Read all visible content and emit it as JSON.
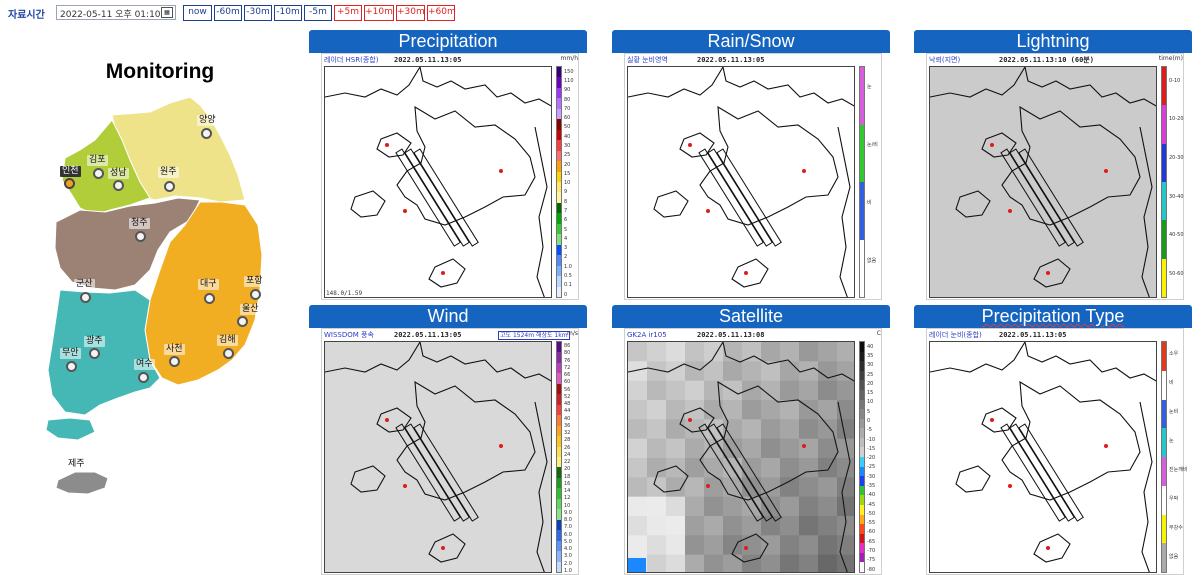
{
  "toolbar": {
    "label": "자료시간",
    "datetime": "2022-05-11 오후 01:10",
    "calendar_icon": "calendar-icon",
    "buttons": [
      {
        "label": "now",
        "style": "blue"
      },
      {
        "label": "-60m",
        "style": "blue"
      },
      {
        "label": "-30m",
        "style": "blue"
      },
      {
        "label": "-10m",
        "style": "blue"
      },
      {
        "label": "-5m",
        "style": "blue"
      },
      {
        "label": "+5m",
        "style": "red"
      },
      {
        "label": "+10m",
        "style": "red"
      },
      {
        "label": "+30m",
        "style": "red"
      },
      {
        "label": "+60m",
        "style": "red"
      }
    ]
  },
  "map": {
    "title": "Monitoring",
    "colors": {
      "northeast": "#efe38a",
      "northwest": "#b2cd3a",
      "central": "#9b8274",
      "southeast": "#f2ae23",
      "southwest": "#45b8b6",
      "jeju": "#8c8c8c",
      "highlight_pin": "#f3a021"
    },
    "cities": {
      "yangyang": "양양",
      "gimpo": "김포",
      "incheon": "인천",
      "seongnam": "성남",
      "wonju": "원주",
      "cheongju": "청주",
      "gunsan": "군산",
      "daegu": "대구",
      "pohang": "포항",
      "ulsan": "울산",
      "gwangju": "광주",
      "muan": "무안",
      "yeosu": "여수",
      "sacheon": "사천",
      "gimhae": "김해",
      "jeju": "제주"
    }
  },
  "panels": [
    {
      "title": "Precipitation",
      "source": "레이더 HSR(종합)",
      "timestamp": "2022.05.11.13:05",
      "unit": "mm/h",
      "footer": "148.0/1.59",
      "plot_background": "#ffffff",
      "scale_labels": [
        "150",
        "110",
        "90",
        "80",
        "70",
        "60",
        "50",
        "40",
        "30",
        "25",
        "20",
        "15",
        "10",
        "9",
        "8",
        "7",
        "6",
        "5",
        "4",
        "3",
        "2",
        "1.0",
        "0.5",
        "0.1",
        "0"
      ],
      "scale_colors": [
        "#33007f",
        "#6b00bf",
        "#9b35ff",
        "#b470ff",
        "#c9a0ff",
        "#8a0000",
        "#d00000",
        "#ff3c3c",
        "#ff6e6e",
        "#ffa000",
        "#ffd200",
        "#ffe86b",
        "#fff59d",
        "#006a00",
        "#00a800",
        "#33cc33",
        "#7fe07f",
        "#0050ff",
        "#4f88ff",
        "#7cb0ff",
        "#bcd6ff",
        "#e5efff"
      ]
    },
    {
      "title": "Rain/Snow",
      "source": "실황 눈비영역",
      "timestamp": "2022.05.11.13:05",
      "unit": "",
      "footer": "",
      "plot_background": "#ffffff",
      "scale_labels": [
        "눈",
        "눈/비",
        "비",
        "없음"
      ],
      "scale_colors": [
        "#d65ddb",
        "#32c832",
        "#3060e0",
        "#ffffff"
      ]
    },
    {
      "title": "Lightning",
      "source": "낙뢰(지면)",
      "timestamp": "2022.05.11.13:10 (60분)",
      "unit": "time(m)",
      "footer": "",
      "plot_background": "#cbcbcb",
      "scale_labels": [
        "0-10",
        "10-20",
        "20-30",
        "30-40",
        "40-50",
        "50-60"
      ],
      "scale_colors": [
        "#e01b1b",
        "#d63fd6",
        "#2438d8",
        "#22c7c7",
        "#1a9a1a",
        "#f7f200"
      ]
    },
    {
      "title": "Wind",
      "source": "WISSDOM 풍속",
      "timestamp": "2022.05.11.13:05",
      "unit": "m/s",
      "footer": "",
      "note": "고도 1524m 해상도 1km",
      "plot_background": "#d9d9d9",
      "scale_labels": [
        "86",
        "80",
        "76",
        "72",
        "66",
        "60",
        "56",
        "52",
        "48",
        "44",
        "40",
        "36",
        "32",
        "28",
        "26",
        "24",
        "22",
        "20",
        "18",
        "16",
        "14",
        "12",
        "10",
        "9.0",
        "8.0",
        "7.0",
        "6.0",
        "5.0",
        "4.0",
        "3.0",
        "2.0",
        "1.0"
      ],
      "scale_colors": [
        "#5a0a8a",
        "#8b2aa8",
        "#c03cc0",
        "#e05cc0",
        "#a01010",
        "#d02020",
        "#ff3c3c",
        "#ff7b2e",
        "#ffa31a",
        "#ffc61a",
        "#ffe04b",
        "#fff07c",
        "#0f6a0f",
        "#1c9a1c",
        "#2cc02c",
        "#5fd85f",
        "#88e888",
        "#0a40c0",
        "#2a6af0",
        "#5b92ff",
        "#8bb5ff",
        "#c5dbff"
      ]
    },
    {
      "title": "Satellite",
      "source": "GK2A ir105",
      "timestamp": "2022.05.11.13:08",
      "unit": "C",
      "footer": "",
      "plot_background": "#6e6e6e",
      "scale_labels": [
        "40",
        "35",
        "30",
        "25",
        "20",
        "15",
        "10",
        "5",
        "0",
        "-5",
        "-10",
        "-15",
        "-20",
        "-25",
        "-30",
        "-35",
        "-40",
        "-45",
        "-50",
        "-55",
        "-60",
        "-65",
        "-70",
        "-75",
        "-80"
      ],
      "scale_colors": [
        "#0d0d0d",
        "#1c1c1c",
        "#2e2e2e",
        "#404040",
        "#525252",
        "#646464",
        "#767676",
        "#888888",
        "#9a9a9a",
        "#acacac",
        "#bebebe",
        "#d0d0d0",
        "#38d0ff",
        "#1c88ff",
        "#1e40f0",
        "#31c431",
        "#9bd818",
        "#fff21f",
        "#ffab1a",
        "#ff4b1a",
        "#d41414",
        "#e82dc4",
        "#a020b8",
        "#ffffff"
      ]
    },
    {
      "title": "Precipitation Type",
      "source": "레이더 눈비(종합)",
      "timestamp": "2022.05.11.13:05",
      "unit": "",
      "footer": "",
      "plot_background": "#ffffff",
      "scale_labels": [
        "소우",
        "비",
        "눈비",
        "눈",
        "진눈깨비",
        "우박",
        "무강수",
        "없음"
      ],
      "scale_colors": [
        "#e0391c",
        "#ffffff",
        "#3060e0",
        "#22c7c7",
        "#d65ddb",
        "#ffffff",
        "#f7f200",
        "#aaaaaa"
      ]
    }
  ]
}
